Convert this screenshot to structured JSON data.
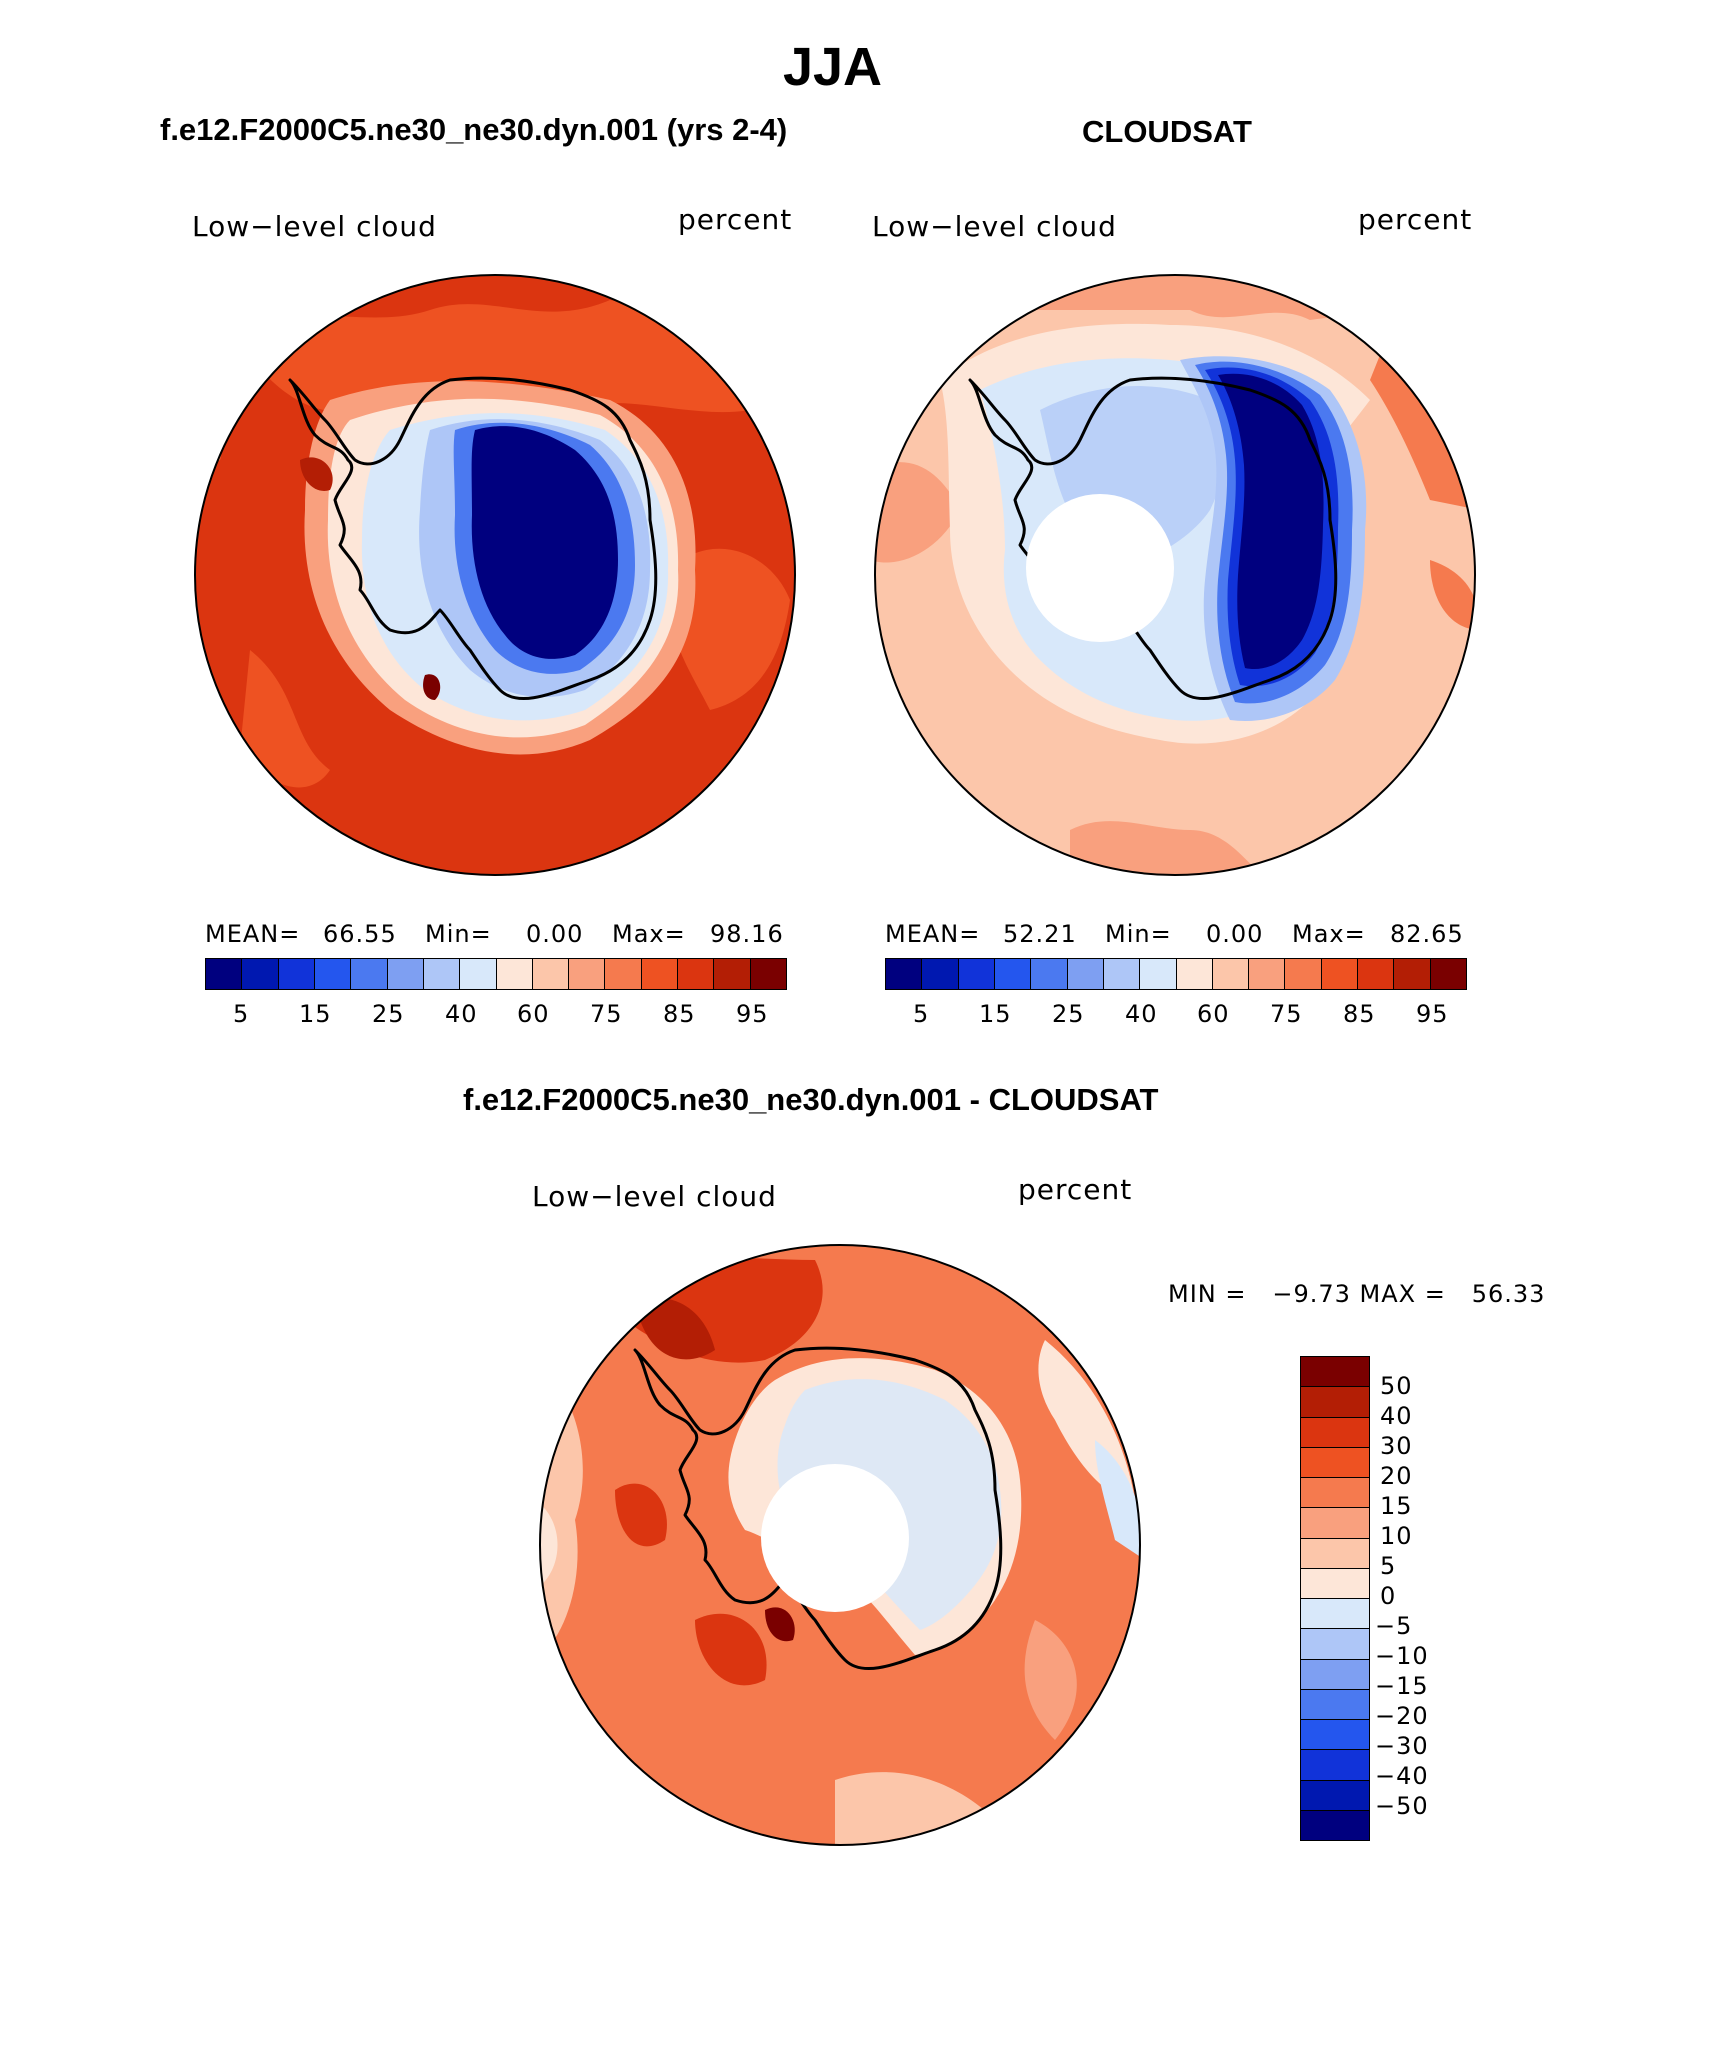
{
  "figure_title": "JJA",
  "palette": [
    "#00007f",
    "#0018b0",
    "#1133d9",
    "#2456ee",
    "#4b79f0",
    "#7e9ff2",
    "#aec6f7",
    "#d8e8fa",
    "#fde6d8",
    "#fcc6aa",
    "#f9a07e",
    "#f57a4e",
    "#ee5222",
    "#db3510",
    "#b31e05",
    "#7a0000"
  ],
  "panels": [
    {
      "title": "f.e12.F2000C5.ne30_ne30.dyn.001 (yrs 2-4)",
      "left_label": "Low−level cloud",
      "right_label": "percent",
      "stats": {
        "mean_label": "MEAN=",
        "mean": "66.55",
        "min_label": "Min=",
        "min": "0.00",
        "max_label": "Max=",
        "max": "98.16"
      },
      "colorbar_ticks": [
        "5",
        "15",
        "25",
        "40",
        "60",
        "75",
        "85",
        "95"
      ]
    },
    {
      "title": "CLOUDSAT",
      "left_label": "Low−level cloud",
      "right_label": "percent",
      "stats": {
        "mean_label": "MEAN=",
        "mean": "52.21",
        "min_label": "Min=",
        "min": "0.00",
        "max_label": "Max=",
        "max": "82.65"
      },
      "colorbar_ticks": [
        "5",
        "15",
        "25",
        "40",
        "60",
        "75",
        "85",
        "95"
      ]
    },
    {
      "title": "f.e12.F2000C5.ne30_ne30.dyn.001 - CLOUDSAT",
      "left_label": "Low−level cloud",
      "right_label": "percent",
      "minmax": "MIN =   −9.73 MAX =   56.33",
      "colorbar_ticks": [
        "50",
        "40",
        "30",
        "20",
        "15",
        "10",
        "5",
        "0",
        "−5",
        "−10",
        "−15",
        "−20",
        "−30",
        "−40",
        "−50"
      ]
    }
  ]
}
